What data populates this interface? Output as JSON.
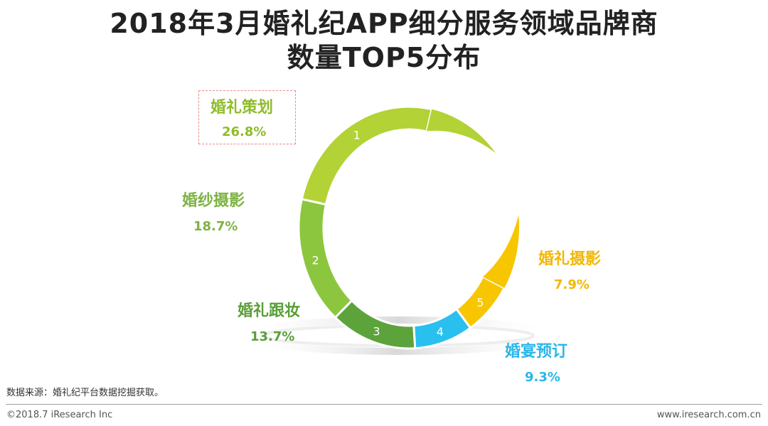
{
  "title": {
    "line1": "2018年3月婚礼纪APP细分服务领域品牌商",
    "line2": "数量TOP5分布"
  },
  "chart_data": {
    "type": "pie",
    "variant": "3d-donut-ring",
    "title": "2018年3月婚礼纪APP细分服务领域品牌商数量TOP5分布",
    "categories": [
      "婚礼策划",
      "婚纱摄影",
      "婚礼跟妆",
      "婚宴预订",
      "婚礼摄影"
    ],
    "ranks": [
      "1",
      "2",
      "3",
      "4",
      "5"
    ],
    "values": [
      26.8,
      18.7,
      13.7,
      9.3,
      7.9
    ],
    "value_labels": [
      "26.8%",
      "18.7%",
      "13.7%",
      "9.3%",
      "7.9%"
    ],
    "unit": "%",
    "colors": [
      "#b2d235",
      "#8cc63f",
      "#5da33b",
      "#29c0f0",
      "#f7c600"
    ]
  },
  "footer": {
    "source": "数据来源：婚礼纪平台数据挖掘获取。",
    "copyright": "©2018.7 iResearch Inc",
    "website": "www.iresearch.com.cn"
  }
}
